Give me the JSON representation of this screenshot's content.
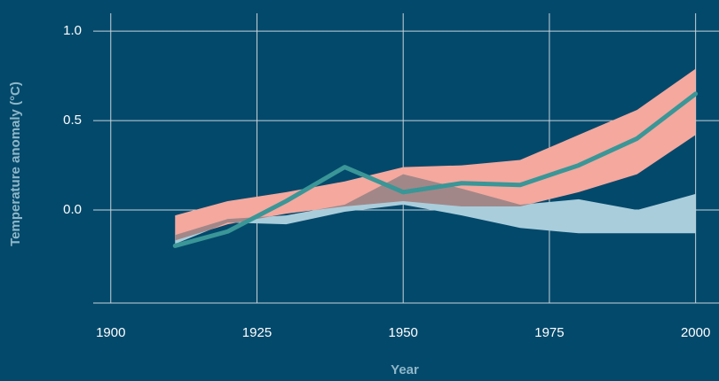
{
  "chart_data": {
    "type": "line",
    "xlabel": "Year",
    "ylabel": "Temperature anomaly (°C)",
    "x": [
      1911,
      1920,
      1930,
      1940,
      1950,
      1960,
      1970,
      1980,
      1990,
      2000
    ],
    "series": [
      {
        "color": "#3a9697",
        "values": [
          -0.2,
          -0.12,
          0.05,
          0.24,
          0.1,
          0.15,
          0.14,
          0.25,
          0.4,
          0.65
        ]
      }
    ],
    "bands": [
      {
        "color": "#a9cddb",
        "lower": [
          -0.19,
          -0.07,
          -0.08,
          -0.01,
          0.03,
          -0.03,
          -0.1,
          -0.13,
          -0.13,
          -0.13
        ],
        "upper": [
          -0.14,
          -0.05,
          -0.03,
          0.03,
          0.2,
          0.12,
          0.03,
          0.06,
          0.0,
          0.09
        ]
      },
      {
        "color": "#f4a89e",
        "lower": [
          -0.17,
          -0.08,
          -0.02,
          0.02,
          0.05,
          0.02,
          0.02,
          0.1,
          0.2,
          0.42
        ],
        "upper": [
          -0.03,
          0.05,
          0.1,
          0.16,
          0.24,
          0.25,
          0.28,
          0.42,
          0.56,
          0.79
        ]
      }
    ],
    "xlim": [
      1897,
      2004
    ],
    "xticks": [
      1900,
      1925,
      1950,
      1975,
      2000
    ],
    "ylim": [
      -0.52,
      1.1
    ],
    "yticks": [
      {
        "value": 0,
        "label": "0.0"
      },
      {
        "value": 0.5,
        "label": "0.5"
      },
      {
        "value": 1,
        "label": "1.0"
      }
    ],
    "grid": true
  }
}
